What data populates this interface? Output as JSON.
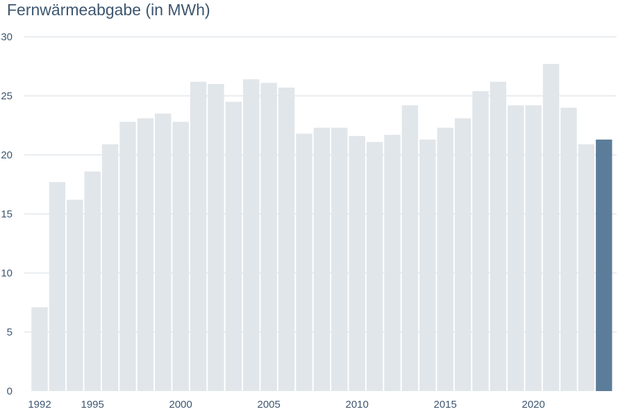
{
  "chart_data": {
    "type": "bar",
    "title": "Fernwärmeabgabe (in MWh)",
    "xlabel": "",
    "ylabel": "",
    "ylim": [
      0,
      30
    ],
    "yticks": [
      "0",
      "5",
      "10",
      "15",
      "20",
      "25",
      "30"
    ],
    "grid": true,
    "legend": "none",
    "x": [
      1992,
      1993,
      1994,
      1995,
      1996,
      1997,
      1998,
      1999,
      2000,
      2001,
      2002,
      2003,
      2004,
      2005,
      2006,
      2007,
      2008,
      2009,
      2010,
      2011,
      2012,
      2013,
      2014,
      2015,
      2016,
      2017,
      2018,
      2019,
      2020,
      2021,
      2022,
      2023,
      2024
    ],
    "values": [
      7.1,
      17.7,
      16.2,
      18.6,
      20.9,
      22.8,
      23.1,
      23.5,
      22.8,
      26.2,
      26.0,
      24.5,
      26.4,
      26.1,
      25.7,
      21.8,
      22.3,
      22.3,
      21.6,
      21.1,
      21.7,
      24.2,
      21.3,
      22.3,
      23.1,
      25.4,
      26.2,
      24.2,
      24.2,
      27.7,
      24.0,
      20.9,
      21.3
    ],
    "xtick_labels": [
      {
        "year": 1992,
        "label": "1992"
      },
      {
        "year": 1995,
        "label": "1995"
      },
      {
        "year": 2000,
        "label": "2000"
      },
      {
        "year": 2005,
        "label": "2005"
      },
      {
        "year": 2010,
        "label": "2010"
      },
      {
        "year": 2015,
        "label": "2015"
      },
      {
        "year": 2020,
        "label": "2020"
      }
    ],
    "highlight_year": 2024,
    "colors": {
      "bar": "#e1e6ea",
      "highlight": "#5c7d9a",
      "text": "#3d5670",
      "grid": "#d4dbe1"
    }
  }
}
